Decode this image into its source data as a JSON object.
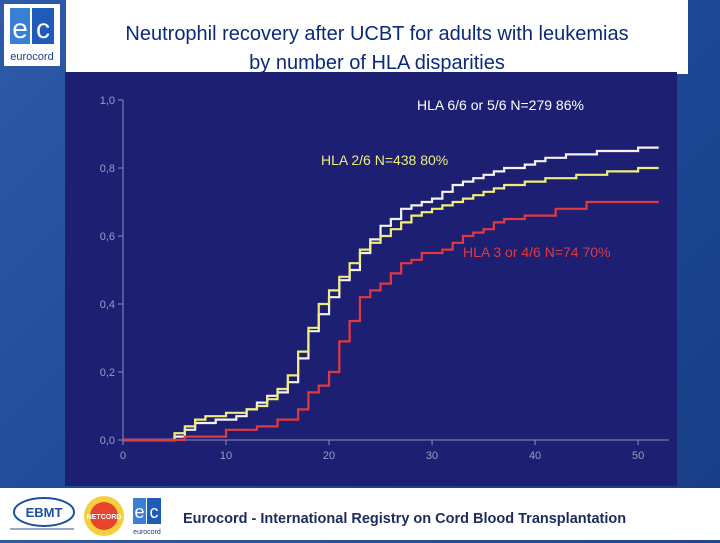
{
  "slide": {
    "title_line1": "Neutrophil recovery after UCBT for adults with leukemias",
    "title_line2": "by number of HLA disparities",
    "logo_text": "eurocord",
    "footer_text": "Eurocord - International Registry on Cord Blood Transplantation",
    "footer_logos": {
      "ebmt": "EBMT",
      "netcord": "NETCORD",
      "eurocord": "eurocord"
    }
  },
  "chart_data": {
    "type": "line",
    "step": true,
    "title": "",
    "xlabel": "",
    "ylabel": "",
    "xlim": [
      0,
      53
    ],
    "ylim": [
      0,
      1
    ],
    "x_ticks": [
      0,
      10,
      20,
      30,
      40,
      50
    ],
    "x_tick_labels": [
      "0",
      "10",
      "20",
      "30",
      "40",
      "50"
    ],
    "y_ticks": [
      0,
      0.2,
      0.4,
      0.6,
      0.8,
      1.0
    ],
    "y_tick_labels": [
      "0,0",
      "0,2",
      "0,4",
      "0,6",
      "0,8",
      "1,0"
    ],
    "series": [
      {
        "name": "HLA 6/6 or 5/6 N=279",
        "label": "HLA 6/6 or 5/6 N=279   86%",
        "color": "#f2f2f2",
        "x": [
          0,
          5,
          6,
          7,
          9,
          11,
          12,
          13,
          14,
          15,
          16,
          17,
          18,
          19,
          20,
          21,
          22,
          23,
          24,
          25,
          26,
          27,
          28,
          29,
          30,
          31,
          32,
          33,
          34,
          35,
          36,
          37,
          38,
          39,
          40,
          41,
          42,
          43,
          44,
          45,
          46,
          47,
          48,
          49,
          50,
          51,
          52
        ],
        "y": [
          0,
          0.01,
          0.03,
          0.05,
          0.06,
          0.07,
          0.09,
          0.11,
          0.13,
          0.14,
          0.17,
          0.24,
          0.32,
          0.37,
          0.42,
          0.47,
          0.5,
          0.55,
          0.59,
          0.63,
          0.65,
          0.68,
          0.69,
          0.7,
          0.71,
          0.73,
          0.75,
          0.76,
          0.77,
          0.78,
          0.79,
          0.8,
          0.8,
          0.81,
          0.82,
          0.83,
          0.83,
          0.84,
          0.84,
          0.84,
          0.85,
          0.85,
          0.85,
          0.85,
          0.86,
          0.86,
          0.86
        ]
      },
      {
        "name": "HLA 2/6 N=438",
        "label": "HLA 2/6 N=438  80%",
        "color": "#f0ee78",
        "x": [
          0,
          5,
          6,
          7,
          8,
          10,
          12,
          13,
          14,
          15,
          16,
          17,
          18,
          19,
          20,
          21,
          22,
          23,
          24,
          25,
          26,
          27,
          28,
          29,
          30,
          31,
          32,
          33,
          34,
          35,
          36,
          37,
          38,
          39,
          40,
          41,
          42,
          43,
          44,
          45,
          46,
          47,
          48,
          49,
          50,
          51,
          52
        ],
        "y": [
          0,
          0.02,
          0.04,
          0.06,
          0.07,
          0.08,
          0.09,
          0.1,
          0.12,
          0.15,
          0.19,
          0.26,
          0.33,
          0.4,
          0.44,
          0.48,
          0.52,
          0.56,
          0.58,
          0.6,
          0.62,
          0.64,
          0.66,
          0.67,
          0.68,
          0.69,
          0.7,
          0.71,
          0.72,
          0.73,
          0.74,
          0.75,
          0.75,
          0.76,
          0.76,
          0.77,
          0.77,
          0.77,
          0.78,
          0.78,
          0.78,
          0.79,
          0.79,
          0.79,
          0.8,
          0.8,
          0.8
        ]
      },
      {
        "name": "HLA 3 or 4/6 N=74",
        "label": "HLA 3 or 4/6 N=74   70%",
        "color": "#e03a3e",
        "x": [
          0,
          6,
          10,
          13,
          15,
          17,
          18,
          19,
          20,
          21,
          22,
          23,
          24,
          25,
          26,
          27,
          28,
          29,
          30,
          31,
          32,
          33,
          34,
          35,
          36,
          37,
          38,
          39,
          40,
          41,
          42,
          43,
          44,
          45,
          46,
          47,
          48,
          50,
          52
        ],
        "y": [
          0,
          0.01,
          0.03,
          0.04,
          0.06,
          0.09,
          0.14,
          0.16,
          0.2,
          0.29,
          0.35,
          0.42,
          0.44,
          0.46,
          0.49,
          0.52,
          0.53,
          0.55,
          0.55,
          0.56,
          0.58,
          0.6,
          0.61,
          0.62,
          0.64,
          0.65,
          0.65,
          0.66,
          0.66,
          0.66,
          0.68,
          0.68,
          0.68,
          0.7,
          0.7,
          0.7,
          0.7,
          0.7,
          0.7
        ]
      }
    ]
  }
}
